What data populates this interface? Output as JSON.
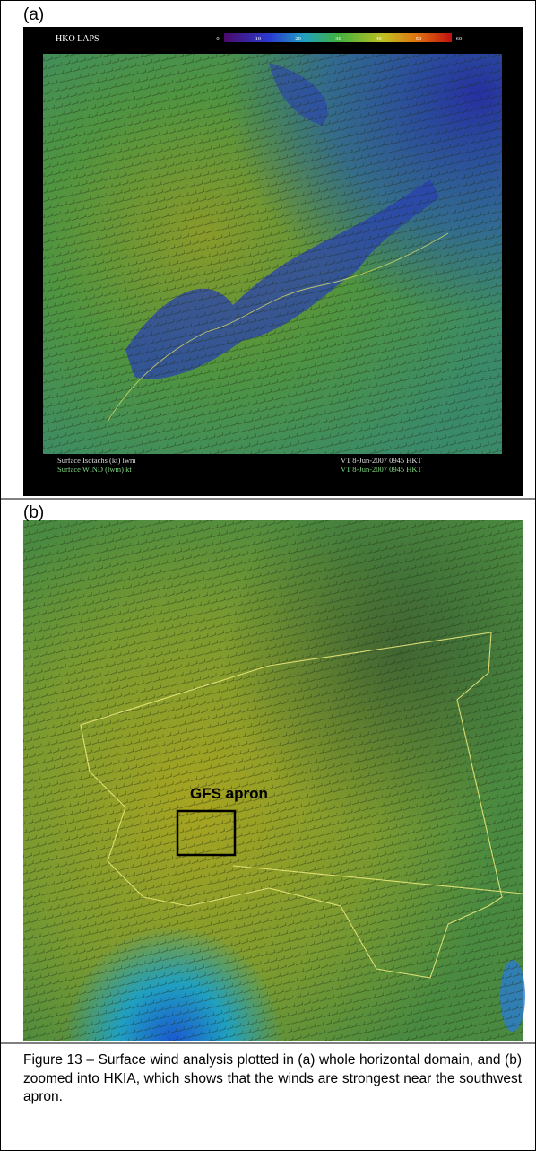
{
  "panel_a": {
    "label": "(a)",
    "model_label": "HKO LAPS",
    "colorbar_ticks": [
      0,
      10,
      20,
      30,
      40,
      50,
      60
    ],
    "footer": [
      {
        "left": "Surface Isotachs (kt) lwm",
        "right": "VT  8-Jun-2007 0945 HKT"
      },
      {
        "left": "Surface WIND  (lwm)    kt",
        "right": "VT  8-Jun-2007 0945 HKT"
      }
    ]
  },
  "panel_b": {
    "label": "(b)",
    "annotation": "GFS apron"
  },
  "caption": "Figure 13 – Surface wind analysis plotted in (a) whole horizontal domain, and (b) zoomed into HKIA, which shows that the winds are strongest near the southwest apron."
}
